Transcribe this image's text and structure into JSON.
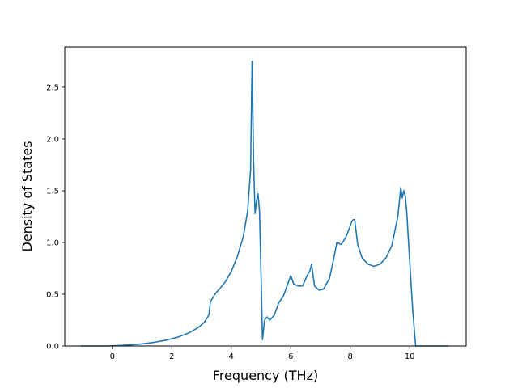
{
  "chart_data": {
    "type": "line",
    "title": "",
    "xlabel": "Frequency (THz)",
    "ylabel": "Density of States",
    "xlim": [
      -1.6,
      11.9
    ],
    "ylim": [
      0.0,
      2.89
    ],
    "xticks": [
      0,
      2,
      4,
      6,
      8,
      10
    ],
    "xtick_labels": [
      "0",
      "2",
      "4",
      "6",
      "8",
      "10"
    ],
    "yticks": [
      0.0,
      0.5,
      1.0,
      1.5,
      2.0,
      2.5
    ],
    "ytick_labels": [
      "0.0",
      "0.5",
      "1.0",
      "1.5",
      "2.0",
      "2.5"
    ],
    "grid": false,
    "legend": "none",
    "series": [
      {
        "color": "#1f77b4",
        "x": [
          -1.05,
          -0.6,
          -0.2,
          0.0,
          0.3,
          0.6,
          1.0,
          1.4,
          1.8,
          2.2,
          2.6,
          2.9,
          3.1,
          3.25,
          3.3,
          3.35,
          3.45,
          3.6,
          3.8,
          4.0,
          4.2,
          4.4,
          4.55,
          4.65,
          4.7,
          4.75,
          4.8,
          4.85,
          4.9,
          4.95,
          5.0,
          5.05,
          5.12,
          5.2,
          5.3,
          5.45,
          5.6,
          5.75,
          5.9,
          6.0,
          6.1,
          6.25,
          6.4,
          6.55,
          6.65,
          6.7,
          6.8,
          6.95,
          7.1,
          7.3,
          7.45,
          7.55,
          7.7,
          7.85,
          7.95,
          8.05,
          8.1,
          8.15,
          8.25,
          8.4,
          8.6,
          8.8,
          9.0,
          9.2,
          9.4,
          9.6,
          9.7,
          9.75,
          9.8,
          9.85,
          9.9,
          9.95,
          10.0,
          10.1,
          10.2,
          10.3,
          10.5,
          11.3
        ],
        "y": [
          0.0,
          0.0,
          0.0,
          0.002,
          0.005,
          0.01,
          0.02,
          0.035,
          0.055,
          0.085,
          0.13,
          0.18,
          0.23,
          0.3,
          0.43,
          0.45,
          0.5,
          0.55,
          0.62,
          0.72,
          0.86,
          1.05,
          1.3,
          1.7,
          2.75,
          1.8,
          1.28,
          1.4,
          1.47,
          1.3,
          0.7,
          0.06,
          0.25,
          0.28,
          0.25,
          0.3,
          0.42,
          0.48,
          0.6,
          0.68,
          0.6,
          0.58,
          0.58,
          0.68,
          0.73,
          0.79,
          0.58,
          0.54,
          0.55,
          0.65,
          0.85,
          1.0,
          0.98,
          1.05,
          1.12,
          1.2,
          1.22,
          1.22,
          0.98,
          0.85,
          0.79,
          0.77,
          0.79,
          0.85,
          0.97,
          1.25,
          1.53,
          1.43,
          1.5,
          1.45,
          1.3,
          1.05,
          0.82,
          0.35,
          0.0,
          0.0,
          0.0,
          0.0
        ]
      }
    ]
  }
}
